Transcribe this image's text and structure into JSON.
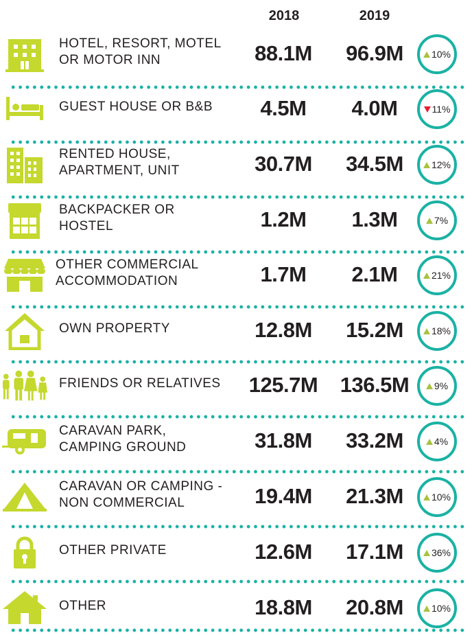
{
  "columns": {
    "year_2018": "2018",
    "year_2019": "2019"
  },
  "colors": {
    "icon": "#c4d82e",
    "badge_ring": "#1ab2a4",
    "up": "#a9c23f",
    "down": "#e0202f",
    "dots": "#1ab2a4"
  },
  "rows": [
    {
      "icon": "hotel-icon",
      "line1": "HOTEL, RESORT, MOTEL",
      "line2": "OR MOTOR INN",
      "v2018": "88.1M",
      "v2019": "96.9M",
      "change": "10%",
      "direction": "up"
    },
    {
      "icon": "bed-icon",
      "line1": "GUEST HOUSE OR B&B",
      "line2": "",
      "v2018": "4.5M",
      "v2019": "4.0M",
      "change": "11%",
      "direction": "down"
    },
    {
      "icon": "apartment-icon",
      "line1": "RENTED HOUSE,",
      "line2": "APARTMENT, UNIT",
      "v2018": "30.7M",
      "v2019": "34.5M",
      "change": "12%",
      "direction": "up"
    },
    {
      "icon": "hostel-icon",
      "line1": "BACKPACKER OR",
      "line2": "HOSTEL",
      "v2018": "1.2M",
      "v2019": "1.3M",
      "change": "7%",
      "direction": "up"
    },
    {
      "icon": "shop-awning-icon",
      "line1": "OTHER COMMERCIAL",
      "line2": "ACCOMMODATION",
      "v2018": "1.7M",
      "v2019": "2.1M",
      "change": "21%",
      "direction": "up"
    },
    {
      "icon": "own-house-icon",
      "line1": "OWN PROPERTY",
      "line2": "",
      "v2018": "12.8M",
      "v2019": "15.2M",
      "change": "18%",
      "direction": "up"
    },
    {
      "icon": "family-icon",
      "line1": "FRIENDS OR RELATIVES",
      "line2": "",
      "v2018": "125.7M",
      "v2019": "136.5M",
      "change": "9%",
      "direction": "up"
    },
    {
      "icon": "caravan-icon",
      "line1": "CARAVAN PARK,",
      "line2": "CAMPING GROUND",
      "v2018": "31.8M",
      "v2019": "33.2M",
      "change": "4%",
      "direction": "up"
    },
    {
      "icon": "tent-icon",
      "line1": "CARAVAN OR CAMPING -",
      "line2": "NON COMMERCIAL",
      "v2018": "19.4M",
      "v2019": "21.3M",
      "change": "10%",
      "direction": "up"
    },
    {
      "icon": "padlock-icon",
      "line1": "OTHER PRIVATE",
      "line2": "",
      "v2018": "12.6M",
      "v2019": "17.1M",
      "change": "36%",
      "direction": "up"
    },
    {
      "icon": "house-icon",
      "line1": "OTHER",
      "line2": "",
      "v2018": "18.8M",
      "v2019": "20.8M",
      "change": "10%",
      "direction": "up"
    }
  ]
}
